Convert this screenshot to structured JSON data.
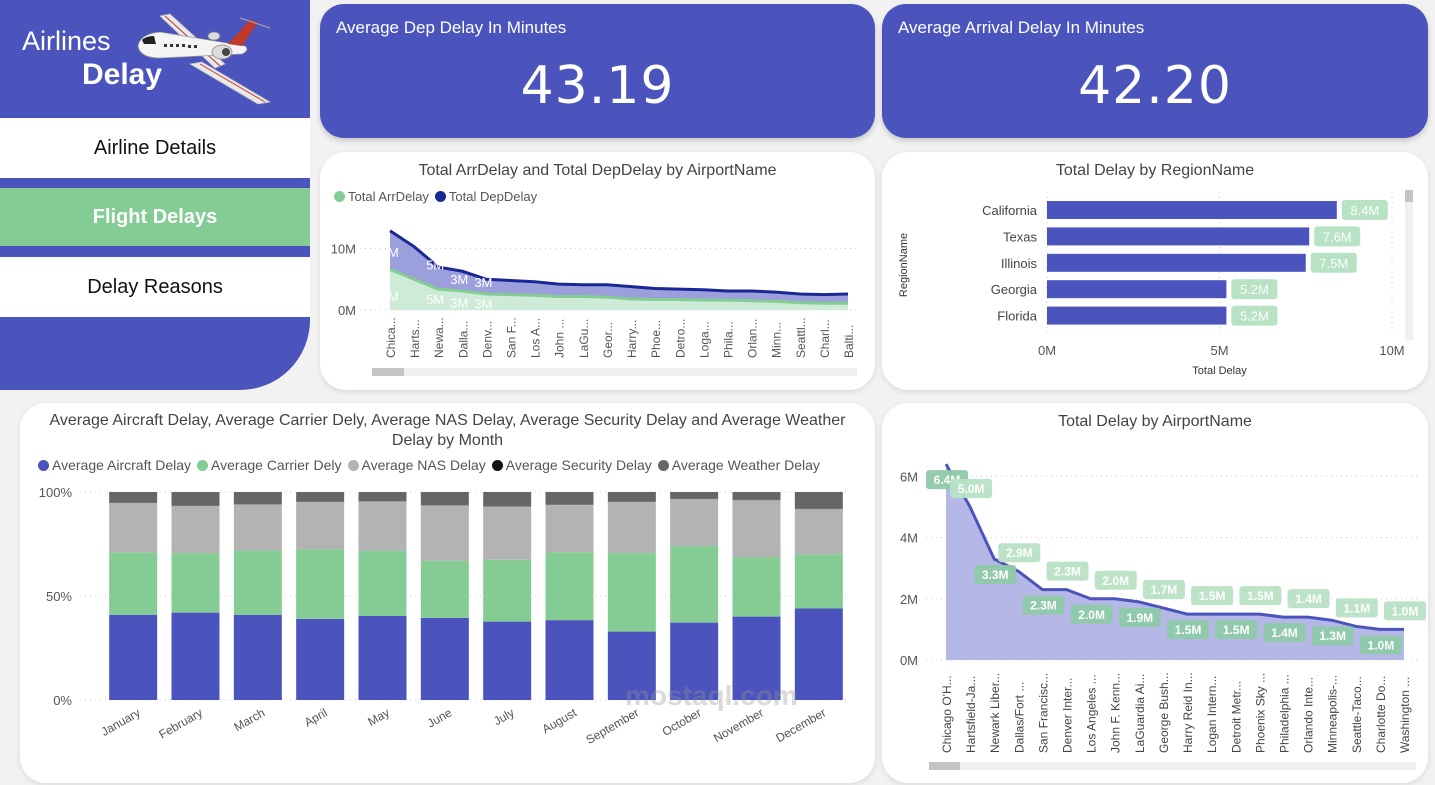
{
  "app": {
    "logo_line1": "Airlines",
    "logo_line2": "Delay",
    "logo_icon": "airplane-icon"
  },
  "nav": {
    "items": [
      {
        "label": "Airline Details",
        "active": false
      },
      {
        "label": "Flight Delays",
        "active": true
      },
      {
        "label": "Delay Reasons",
        "active": false
      }
    ]
  },
  "kpis": [
    {
      "label": "Average Dep Delay In Minutes",
      "value": "43.19"
    },
    {
      "label": "Average Arrival Delay In Minutes",
      "value": "42.20"
    }
  ],
  "colors": {
    "brand": "#4b54bc",
    "accent_green": "#84cc94",
    "navy": "#1a2896",
    "gray_nas": "#b3b3b3",
    "black_security": "#111111",
    "dark_gray_weather": "#666666"
  },
  "watermark": "mostaql.com",
  "chart_data": [
    {
      "id": "arr-dep-by-airport",
      "type": "area",
      "stacked": true,
      "title": "Total ArrDelay and Total DepDelay by AirportName",
      "legend": [
        "Total ArrDelay",
        "Total DepDelay"
      ],
      "legend_position": "top-left",
      "categories": [
        "Chica...",
        "Harts...",
        "Newa...",
        "Dalla...",
        "Denv...",
        "San F...",
        "Los A...",
        "John ...",
        "LaGu...",
        "Geor...",
        "Harry...",
        "Phoe...",
        "Detro...",
        "Loga...",
        "Phila...",
        "Orlan...",
        "Minn...",
        "Seattl...",
        "Charl...",
        "Balti..."
      ],
      "series": [
        {
          "name": "Total ArrDelay",
          "color": "#84cc94",
          "values": [
            6.6,
            5.0,
            3.4,
            3.1,
            2.6,
            2.5,
            2.4,
            2.2,
            2.2,
            2.1,
            1.8,
            1.7,
            1.7,
            1.6,
            1.6,
            1.5,
            1.4,
            1.2,
            1.1,
            1.1
          ]
        },
        {
          "name": "Total DepDelay",
          "color": "#1a2896",
          "values": [
            6.3,
            5.3,
            3.6,
            3.2,
            2.4,
            2.3,
            2.2,
            2.0,
            1.9,
            2.0,
            2.0,
            1.8,
            1.7,
            1.7,
            1.5,
            1.6,
            1.5,
            1.4,
            1.4,
            1.5
          ]
        }
      ],
      "data_labels_arr": [
        "M",
        "5M",
        "3M",
        "3M"
      ],
      "data_labels_dep": [
        "M",
        "5M",
        "3M",
        "3M"
      ],
      "yticks": [
        "0M",
        "10M"
      ],
      "ylim": [
        0,
        13.5
      ],
      "units": "M",
      "grid": true,
      "xlabel": "",
      "ylabel": ""
    },
    {
      "id": "delay-by-region",
      "type": "bar",
      "orientation": "horizontal",
      "title": "Total Delay by RegionName",
      "categories": [
        "California",
        "Texas",
        "Illinois",
        "Georgia",
        "Florida"
      ],
      "values": [
        8.4,
        7.6,
        7.5,
        5.2,
        5.2
      ],
      "data_labels": [
        "8.4M",
        "7.6M",
        "7.5M",
        "5.2M",
        "5.2M"
      ],
      "xticks": [
        "0M",
        "5M",
        "10M"
      ],
      "xlim": [
        0,
        10
      ],
      "xlabel": "Total Delay",
      "ylabel": "RegionName",
      "grid": true
    },
    {
      "id": "delay-reasons-by-month",
      "type": "bar",
      "stacked": "100%",
      "title": "Average Aircraft Delay, Average Carrier Dely, Average NAS Delay, Average Security Delay and Average Weather Delay by Month",
      "legend_position": "top",
      "categories": [
        "January",
        "February",
        "March",
        "April",
        "May",
        "June",
        "July",
        "August",
        "September",
        "October",
        "November",
        "December"
      ],
      "series": [
        {
          "name": "Average Aircraft Delay",
          "color": "#4b54bc",
          "values": [
            41.0,
            42.0,
            41.0,
            39.0,
            40.4,
            39.5,
            37.7,
            38.4,
            32.9,
            37.2,
            40.1,
            44.0
          ]
        },
        {
          "name": "Average Carrier Dely",
          "color": "#84cc94",
          "values": [
            30.0,
            28.6,
            31.0,
            33.4,
            31.2,
            27.5,
            29.7,
            32.7,
            37.7,
            36.8,
            28.6,
            26.1
          ]
        },
        {
          "name": "Average NAS Delay",
          "color": "#b3b3b3",
          "values": [
            23.7,
            22.7,
            22.0,
            22.9,
            23.9,
            26.6,
            25.6,
            22.8,
            24.6,
            22.6,
            27.4,
            21.7
          ]
        },
        {
          "name": "Average Security Delay",
          "color": "#111111",
          "values": [
            0.1,
            0.1,
            0.1,
            0.1,
            0.1,
            0.1,
            0.1,
            0.1,
            0.1,
            0.1,
            0.1,
            0.1
          ]
        },
        {
          "name": "Average Weather Delay",
          "color": "#666666",
          "values": [
            5.2,
            6.6,
            5.9,
            4.6,
            4.4,
            6.3,
            6.9,
            6.0,
            4.7,
            3.3,
            3.8,
            8.1
          ]
        }
      ],
      "yticks": [
        "0%",
        "50%",
        "100%"
      ],
      "ylim": [
        0,
        100
      ],
      "grid": true,
      "xlabel": "",
      "ylabel": ""
    },
    {
      "id": "delay-by-airport",
      "type": "area",
      "title": "Total Delay by AirportName",
      "categories": [
        "Chicago O'H...",
        "Hartsfield-Ja...",
        "Newark Liber...",
        "Dallas/Fort ...",
        "San Francisc...",
        "Denver Inter...",
        "Los Angeles ...",
        "John F. Kenn...",
        "LaGuardia Ai...",
        "George Bush...",
        "Harry Reid In...",
        "Logan Intern...",
        "Detroit Metr...",
        "Phoenix Sky ...",
        "Philadelphia ...",
        "Orlando Inte...",
        "Minneapolis-...",
        "Seattle-Taco...",
        "Charlotte Do...",
        "Washington ..."
      ],
      "values": [
        6.4,
        5.0,
        3.3,
        2.9,
        2.3,
        2.3,
        2.0,
        2.0,
        1.9,
        1.7,
        1.5,
        1.5,
        1.5,
        1.5,
        1.4,
        1.4,
        1.3,
        1.1,
        1.0,
        1.0
      ],
      "data_labels": [
        "6.4M",
        "5.0M",
        "3.3M",
        "2.9M",
        "2.3M",
        "2.3M",
        "2.0M",
        "2.0M",
        "1.9M",
        "1.7M",
        "1.5M",
        "1.5M",
        "1.5M",
        "1.5M",
        "1.4M",
        "1.4M",
        "1.3M",
        "1.1M",
        "1.0M",
        "1.0M"
      ],
      "yticks": [
        "0M",
        "2M",
        "4M",
        "6M"
      ],
      "ylim": [
        0,
        6.6
      ],
      "grid": true,
      "xlabel": "",
      "ylabel": ""
    }
  ]
}
